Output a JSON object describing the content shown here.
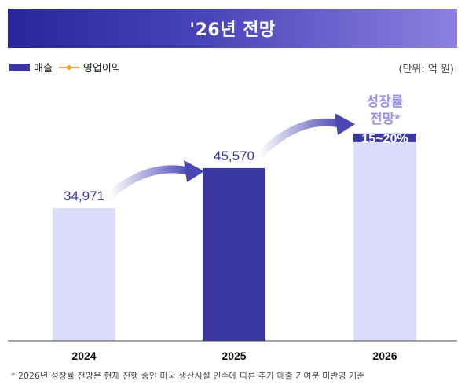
{
  "header": {
    "title": "'26년 전망"
  },
  "legend": {
    "items": [
      "매출",
      "영업이익"
    ]
  },
  "unit_label": "(단위: 억 원)",
  "colors": {
    "bar_light": "#dcdcfb",
    "bar_dark": "#3a38a0",
    "callout": "#3a38a0",
    "growth_text": "#9a92e6",
    "operating_profit": "#f5a623"
  },
  "chart_data": {
    "type": "bar",
    "categories": [
      "2024",
      "2025",
      "2026"
    ],
    "series": [
      {
        "name": "매출",
        "values": [
          34971,
          45570,
          null
        ]
      }
    ],
    "data_labels": [
      "34,971",
      "45,570",
      ""
    ],
    "highlight_index": 1,
    "forecast": {
      "category": "2026",
      "label": "성장률\n전망*",
      "callout": "15~20%",
      "growth_range_pct": [
        15,
        20
      ]
    },
    "ylim": [
      0,
      65000
    ]
  },
  "footnote": "* 2026년 성장률 전망은 현재 진행 중인 미국 생산시설 인수에 따른 추가 매출 기여분 미반영 기준"
}
